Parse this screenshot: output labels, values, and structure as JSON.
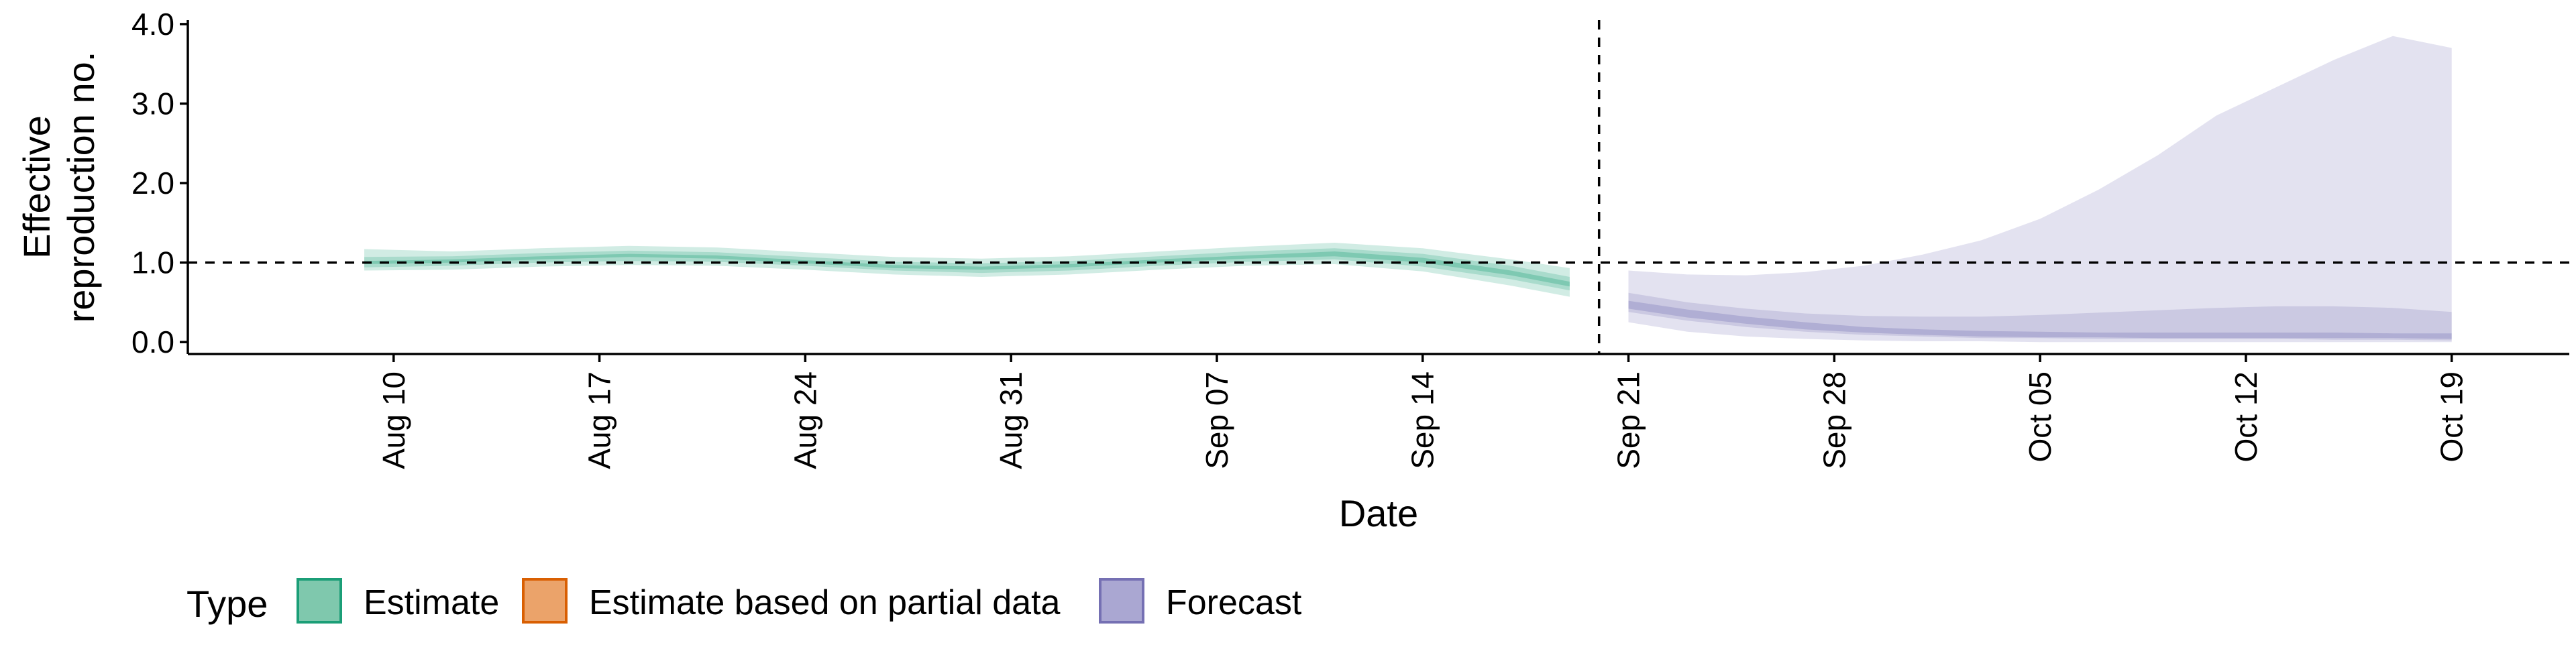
{
  "chart_data": {
    "type": "area",
    "xlabel": "Date",
    "ylabel_lines": [
      "Effective",
      "reproduction no."
    ],
    "ylim": [
      -0.15,
      4.05
    ],
    "xlim": [
      "2020-08-03",
      "2020-10-23"
    ],
    "y_ticks": [
      {
        "value": 0.0,
        "label": "0.0"
      },
      {
        "value": 1.0,
        "label": "1.0"
      },
      {
        "value": 2.0,
        "label": "2.0"
      },
      {
        "value": 3.0,
        "label": "3.0"
      },
      {
        "value": 4.0,
        "label": "4.0"
      }
    ],
    "x_ticks": [
      {
        "date": "2020-08-10",
        "label": "Aug 10"
      },
      {
        "date": "2020-08-17",
        "label": "Aug 17"
      },
      {
        "date": "2020-08-24",
        "label": "Aug 24"
      },
      {
        "date": "2020-08-31",
        "label": "Aug 31"
      },
      {
        "date": "2020-09-07",
        "label": "Sep 07"
      },
      {
        "date": "2020-09-14",
        "label": "Sep 14"
      },
      {
        "date": "2020-09-21",
        "label": "Sep 21"
      },
      {
        "date": "2020-09-28",
        "label": "Sep 28"
      },
      {
        "date": "2020-10-05",
        "label": "Oct 05"
      },
      {
        "date": "2020-10-12",
        "label": "Oct 12"
      },
      {
        "date": "2020-10-19",
        "label": "Oct 19"
      }
    ],
    "reference_lines": {
      "horizontal_y": 1.0,
      "vertical_date": "2020-09-20"
    },
    "grid": false,
    "legend": {
      "title": "Type",
      "position": "bottom-left",
      "items": [
        {
          "label": "Estimate",
          "fill": "#7fc8ad",
          "stroke": "#1b9e77"
        },
        {
          "label": "Estimate based on partial data",
          "fill": "#eba36a",
          "stroke": "#d95f02"
        },
        {
          "label": "Forecast",
          "fill": "#aaa7d2",
          "stroke": "#7570b3"
        }
      ]
    },
    "series": [
      {
        "type_label": "Estimate",
        "color": "#1b9e77",
        "dates": [
          "2020-08-09",
          "2020-08-12",
          "2020-08-15",
          "2020-08-18",
          "2020-08-21",
          "2020-08-24",
          "2020-08-27",
          "2020-08-30",
          "2020-09-02",
          "2020-09-05",
          "2020-09-08",
          "2020-09-11",
          "2020-09-14",
          "2020-09-17",
          "2020-09-19"
        ],
        "median": [
          1.0,
          1.02,
          1.06,
          1.09,
          1.07,
          1.01,
          0.95,
          0.93,
          0.96,
          1.02,
          1.07,
          1.11,
          1.03,
          0.87,
          0.73
        ],
        "band_outer": {
          "lower": [
            0.9,
            0.91,
            0.95,
            0.97,
            0.96,
            0.91,
            0.85,
            0.82,
            0.85,
            0.91,
            0.96,
            0.98,
            0.89,
            0.71,
            0.57
          ],
          "upper": [
            1.17,
            1.14,
            1.18,
            1.21,
            1.19,
            1.13,
            1.07,
            1.05,
            1.08,
            1.14,
            1.2,
            1.25,
            1.18,
            1.04,
            0.93
          ]
        },
        "band_mid": {
          "lower": [
            0.94,
            0.96,
            1.0,
            1.02,
            1.01,
            0.96,
            0.9,
            0.87,
            0.9,
            0.96,
            1.01,
            1.04,
            0.95,
            0.79,
            0.65
          ],
          "upper": [
            1.07,
            1.08,
            1.12,
            1.15,
            1.13,
            1.07,
            1.01,
            0.99,
            1.02,
            1.08,
            1.14,
            1.18,
            1.11,
            0.96,
            0.82
          ]
        },
        "band_inner": {
          "lower": [
            0.98,
            1.0,
            1.04,
            1.07,
            1.05,
            0.99,
            0.93,
            0.91,
            0.94,
            1.0,
            1.05,
            1.08,
            1.0,
            0.84,
            0.7
          ],
          "upper": [
            1.02,
            1.04,
            1.08,
            1.11,
            1.09,
            1.03,
            0.97,
            0.95,
            0.98,
            1.04,
            1.09,
            1.14,
            1.06,
            0.9,
            0.76
          ]
        }
      },
      {
        "type_label": "Forecast",
        "color": "#7570b3",
        "dates": [
          "2020-09-21",
          "2020-09-23",
          "2020-09-25",
          "2020-09-27",
          "2020-09-29",
          "2020-10-01",
          "2020-10-03",
          "2020-10-05",
          "2020-10-07",
          "2020-10-09",
          "2020-10-11",
          "2020-10-13",
          "2020-10-15",
          "2020-10-17",
          "2020-10-19"
        ],
        "median": [
          0.46,
          0.35,
          0.26,
          0.19,
          0.14,
          0.11,
          0.09,
          0.08,
          0.07,
          0.07,
          0.06,
          0.06,
          0.06,
          0.06,
          0.06
        ],
        "band_outer": {
          "lower": [
            0.25,
            0.13,
            0.07,
            0.04,
            0.02,
            0.01,
            0.01,
            0.0,
            0.0,
            0.0,
            0.0,
            0.0,
            0.0,
            0.0,
            0.0
          ],
          "upper": [
            0.9,
            0.85,
            0.84,
            0.88,
            0.96,
            1.1,
            1.28,
            1.55,
            1.92,
            2.35,
            2.85,
            3.2,
            3.55,
            3.85,
            3.7
          ]
        },
        "band_mid": {
          "lower": [
            0.38,
            0.27,
            0.19,
            0.13,
            0.09,
            0.07,
            0.05,
            0.05,
            0.04,
            0.04,
            0.04,
            0.04,
            0.03,
            0.03,
            0.02
          ],
          "upper": [
            0.62,
            0.5,
            0.42,
            0.36,
            0.33,
            0.32,
            0.32,
            0.34,
            0.37,
            0.4,
            0.43,
            0.45,
            0.45,
            0.43,
            0.38
          ]
        },
        "band_inner": {
          "lower": [
            0.42,
            0.31,
            0.23,
            0.16,
            0.12,
            0.09,
            0.07,
            0.06,
            0.06,
            0.05,
            0.05,
            0.05,
            0.05,
            0.05,
            0.04
          ],
          "upper": [
            0.52,
            0.41,
            0.32,
            0.25,
            0.19,
            0.16,
            0.14,
            0.13,
            0.12,
            0.12,
            0.12,
            0.12,
            0.12,
            0.11,
            0.11
          ]
        }
      }
    ]
  }
}
